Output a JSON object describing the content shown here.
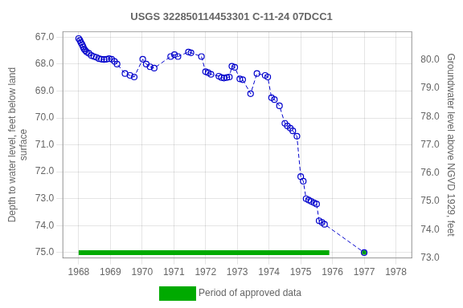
{
  "chart_data": {
    "type": "line",
    "title": "USGS 322850114453301 C-11-24 07DCC1",
    "y_label": "Depth to water level, feet below land\nsurface",
    "y2_label": "Groundwater level above NGVD 1929, feet",
    "xlim": [
      1967.5,
      1978.5
    ],
    "ylim": [
      75.2,
      66.8
    ],
    "y2lim": [
      73.0,
      81.0
    ],
    "xticks": [
      1968,
      1969,
      1970,
      1971,
      1972,
      1973,
      1974,
      1975,
      1976,
      1977,
      1978
    ],
    "yticks": [
      {
        "value": 67.0,
        "label": "67.0"
      },
      {
        "value": 68.0,
        "label": "68.0"
      },
      {
        "value": 69.0,
        "label": "69.0"
      },
      {
        "value": 70.0,
        "label": "70.0"
      },
      {
        "value": 71.0,
        "label": "71.0"
      },
      {
        "value": 72.0,
        "label": "72.0"
      },
      {
        "value": 73.0,
        "label": "73.0"
      },
      {
        "value": 74.0,
        "label": "74.0"
      },
      {
        "value": 75.0,
        "label": "75.0"
      }
    ],
    "y2ticks": [
      {
        "value": 73.0,
        "label": "73.0"
      },
      {
        "value": 74.0,
        "label": "74.0"
      },
      {
        "value": 75.0,
        "label": "75.0"
      },
      {
        "value": 76.0,
        "label": "76.0"
      },
      {
        "value": 77.0,
        "label": "77.0"
      },
      {
        "value": 78.0,
        "label": "78.0"
      },
      {
        "value": 79.0,
        "label": "79.0"
      },
      {
        "value": 80.0,
        "label": "80.0"
      }
    ],
    "grid": true,
    "legend": "bottom",
    "series": [
      {
        "color": "#0000cc",
        "line_style": "dashed",
        "marker": "circle",
        "x": [
          1968.0,
          1968.04,
          1968.07,
          1968.11,
          1968.14,
          1968.17,
          1968.21,
          1968.25,
          1968.32,
          1968.4,
          1968.48,
          1968.56,
          1968.64,
          1968.72,
          1968.8,
          1968.88,
          1968.96,
          1969.04,
          1969.13,
          1969.21,
          1969.46,
          1969.62,
          1969.75,
          1970.02,
          1970.13,
          1970.25,
          1970.38,
          1970.9,
          1971.02,
          1971.13,
          1971.46,
          1971.54,
          1971.87,
          1972.0,
          1972.08,
          1972.17,
          1972.42,
          1972.5,
          1972.58,
          1972.67,
          1972.75,
          1972.83,
          1972.92,
          1973.08,
          1973.17,
          1973.42,
          1973.62,
          1973.88,
          1973.96,
          1974.08,
          1974.17,
          1974.33,
          1974.5,
          1974.58,
          1974.67,
          1974.75,
          1974.88,
          1975.0,
          1975.08,
          1975.17,
          1975.25,
          1975.33,
          1975.42,
          1975.5,
          1975.58,
          1975.67,
          1975.75,
          1977.0
        ],
        "values": [
          67.05,
          67.12,
          67.2,
          67.28,
          67.36,
          67.44,
          67.5,
          67.55,
          67.6,
          67.68,
          67.72,
          67.75,
          67.8,
          67.82,
          67.83,
          67.82,
          67.8,
          67.82,
          67.9,
          68.0,
          68.35,
          68.42,
          68.48,
          67.82,
          68.0,
          68.1,
          68.15,
          67.72,
          67.65,
          67.72,
          67.55,
          67.58,
          67.72,
          68.28,
          68.32,
          68.38,
          68.45,
          68.5,
          68.52,
          68.5,
          68.48,
          68.08,
          68.12,
          68.55,
          68.58,
          69.1,
          68.35,
          68.42,
          68.48,
          69.25,
          69.32,
          69.55,
          70.2,
          70.3,
          70.38,
          70.48,
          70.68,
          72.18,
          72.35,
          73.0,
          73.05,
          73.1,
          73.15,
          73.2,
          73.82,
          73.88,
          73.95,
          75.0
        ]
      },
      {
        "name": "Period of approved data",
        "color": "#00aa00",
        "line_style": "solid",
        "marker": "none",
        "x": [
          1968.0,
          1975.9
        ],
        "values": [
          75.0,
          75.0
        ]
      },
      {
        "color": "#00aa00",
        "marker": "square",
        "x": [
          1977.0
        ],
        "values": [
          75.0
        ]
      }
    ]
  }
}
